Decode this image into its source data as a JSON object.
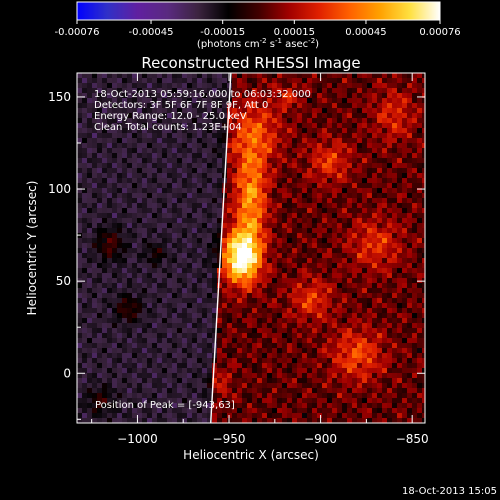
{
  "colorbar": {
    "tick_labels": [
      "-0.00076",
      "-0.00045",
      "-0.00015",
      "0.00015",
      "0.00045",
      "0.00076"
    ],
    "unit_main": "(photons cm",
    "unit_sup1": "-2",
    "unit_mid": " s",
    "unit_sup2": "-1",
    "unit_mid2": " asec",
    "unit_sup3": "-2",
    "unit_end": ")",
    "range": [
      -0.00076,
      0.00076
    ]
  },
  "info_lines": [
    "18-Oct-2013 05:59:16.000 to 06:03:32.000",
    "Detectors: 3F 5F 6F 7F 8F 9F, Att 0",
    "Energy Range: 12.0 - 25.0 keV",
    "Clean     Total counts: 1.23E+04"
  ],
  "peak_label": "Position of Peak = [-943,63]",
  "timestamp": "18-Oct-2013 15:05",
  "chart_data": {
    "type": "heatmap",
    "title": "Reconstructed RHESSI Image",
    "xlabel": "Heliocentric X (arcsec)",
    "ylabel": "Heliocentric Y (arcsec)",
    "xlim": [
      -1033,
      -843
    ],
    "ylim": [
      -27,
      163
    ],
    "x_ticks": [
      -1000,
      -950,
      -900,
      -850
    ],
    "x_tick_labels": [
      "−1000",
      "−950",
      "−900",
      "−850"
    ],
    "y_ticks": [
      0,
      50,
      100,
      150
    ],
    "y_tick_labels": [
      "0",
      "50",
      "100",
      "150"
    ],
    "peak": [
      -943,
      63
    ],
    "colormap": [
      "#0000ff",
      "#3030c8",
      "#6020a0",
      "#5a2a80",
      "#3c2440",
      "#000000",
      "#400000",
      "#a00000",
      "#e02000",
      "#ff6000",
      "#ffa000",
      "#ffe040",
      "#ffffff"
    ],
    "limb_line": [
      [
        -960,
        -27
      ],
      [
        -949,
        163
      ]
    ],
    "sources": [
      {
        "x": -943,
        "y": 63,
        "amp": 1.0,
        "sx": 7,
        "sy": 10
      },
      {
        "x": -938,
        "y": 95,
        "amp": 0.55,
        "sx": 6,
        "sy": 18
      },
      {
        "x": -936,
        "y": 130,
        "amp": 0.35,
        "sx": 10,
        "sy": 12
      },
      {
        "x": -905,
        "y": 40,
        "amp": 0.3,
        "sx": 8,
        "sy": 8
      },
      {
        "x": -880,
        "y": 10,
        "amp": 0.35,
        "sx": 10,
        "sy": 10
      },
      {
        "x": -870,
        "y": 70,
        "amp": 0.28,
        "sx": 10,
        "sy": 10
      },
      {
        "x": -895,
        "y": 115,
        "amp": 0.3,
        "sx": 8,
        "sy": 8
      },
      {
        "x": -860,
        "y": 140,
        "amp": 0.25,
        "sx": 8,
        "sy": 10
      },
      {
        "x": -1015,
        "y": 70,
        "amp": 0.28,
        "sx": 5,
        "sy": 6
      },
      {
        "x": -1005,
        "y": 35,
        "amp": 0.25,
        "sx": 5,
        "sy": 5
      },
      {
        "x": -990,
        "y": 65,
        "amp": 0.18,
        "sx": 4,
        "sy": 4
      },
      {
        "x": -1020,
        "y": -15,
        "amp": 0.22,
        "sx": 5,
        "sy": 5
      },
      {
        "x": -955,
        "y": -5,
        "amp": 0.2,
        "sx": 5,
        "sy": 5
      },
      {
        "x": -918,
        "y": 150,
        "amp": 0.2,
        "sx": 5,
        "sy": 5
      }
    ]
  }
}
